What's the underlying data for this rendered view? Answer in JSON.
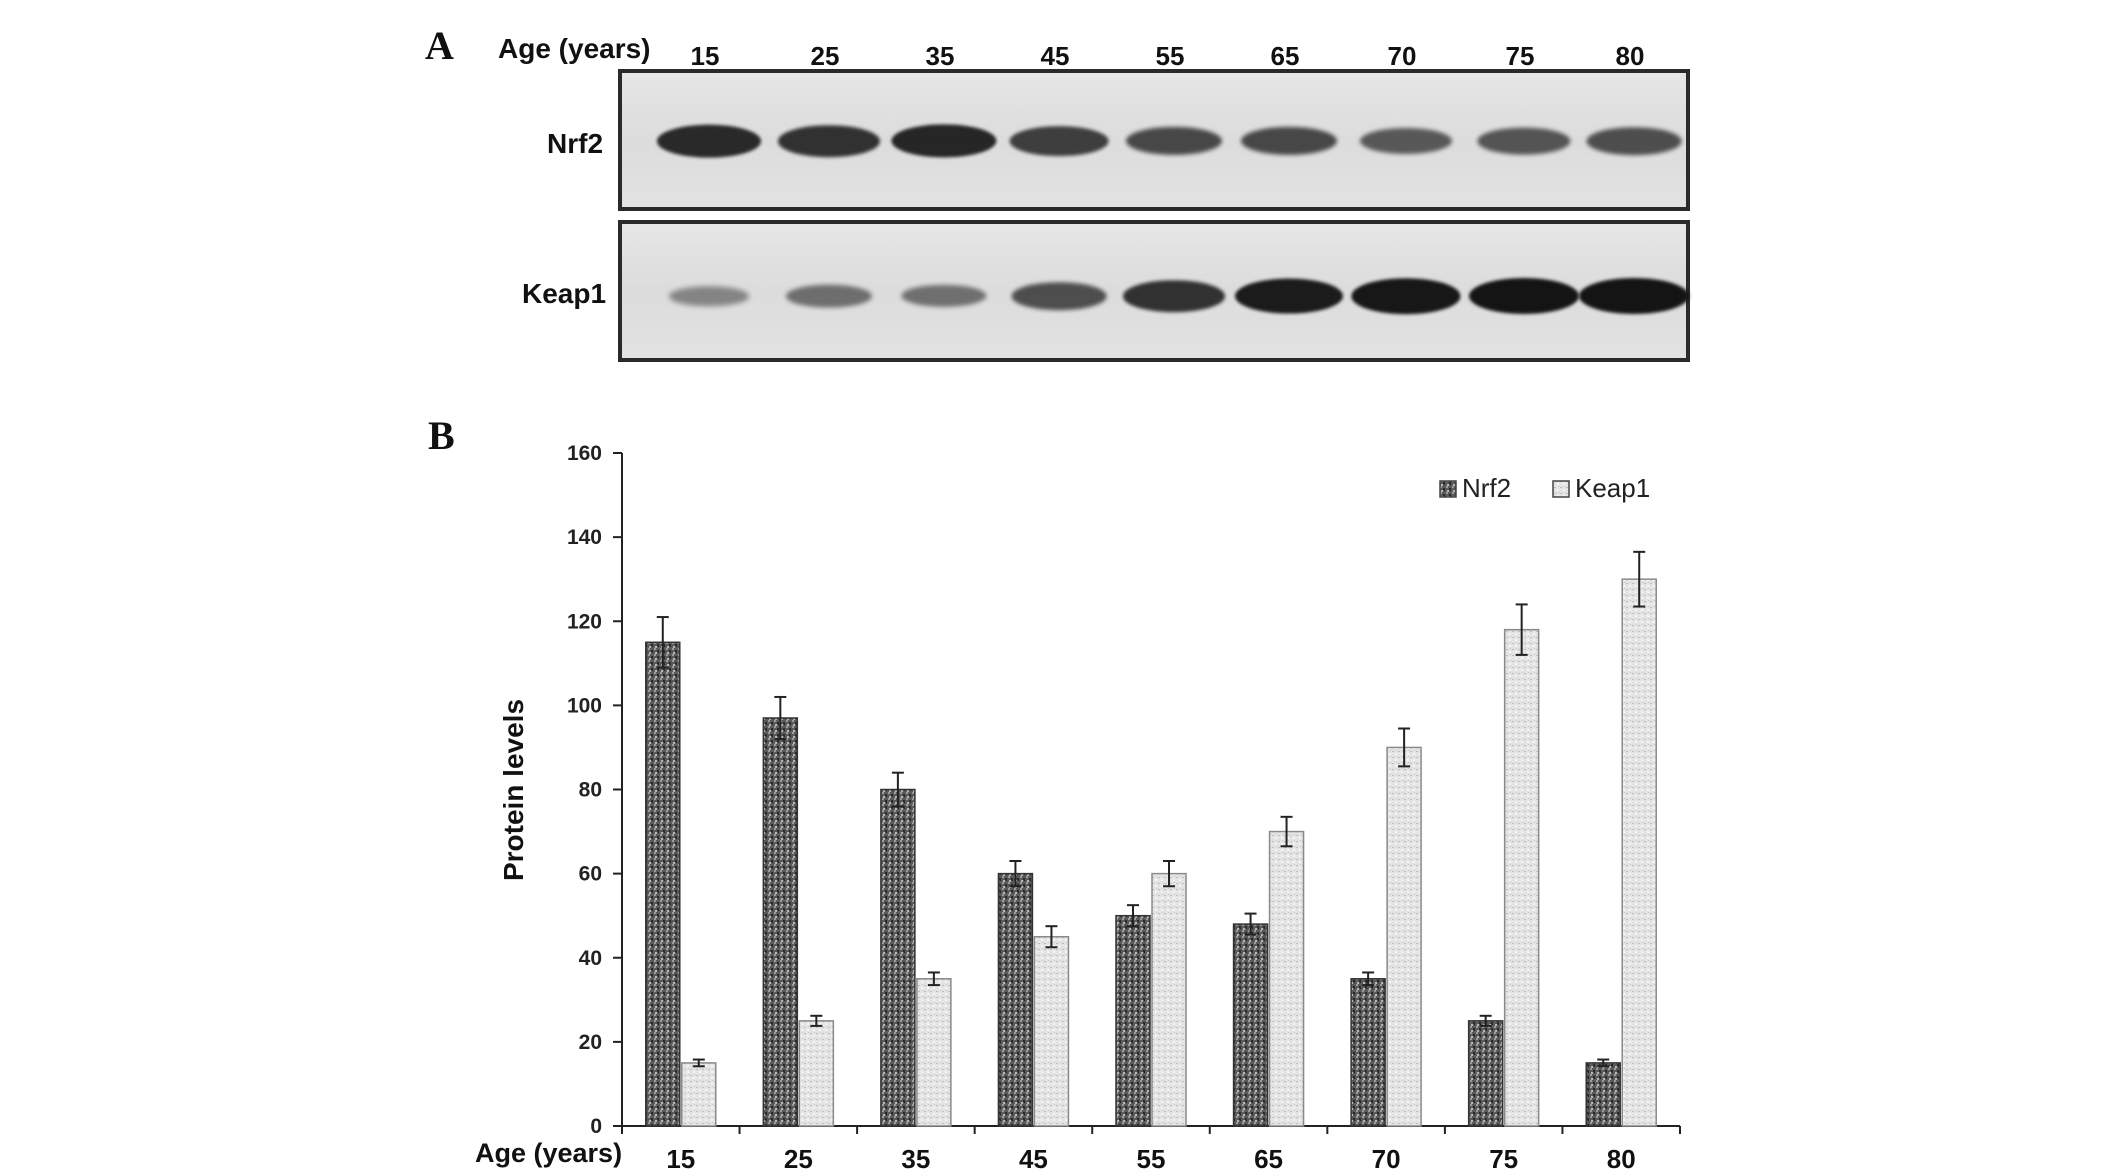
{
  "panel_a": {
    "letter": "A",
    "age_label": "Age (years)",
    "lanes": [
      "15",
      "25",
      "35",
      "45",
      "55",
      "65",
      "70",
      "75",
      "80"
    ],
    "rows": [
      {
        "label": "Nrf2",
        "relative_intensity": [
          0.85,
          0.8,
          0.88,
          0.72,
          0.65,
          0.65,
          0.55,
          0.58,
          0.62
        ]
      },
      {
        "label": "Keap1",
        "relative_intensity": [
          0.25,
          0.4,
          0.38,
          0.62,
          0.8,
          0.95,
          0.98,
          1.0,
          1.0
        ]
      }
    ],
    "band_color": "#141414"
  },
  "panel_b": {
    "letter": "B"
  },
  "chart_data": {
    "type": "bar",
    "xlabel": "Age (years)",
    "ylabel": "Protein levels",
    "categories": [
      "15",
      "25",
      "35",
      "45",
      "55",
      "65",
      "70",
      "75",
      "80"
    ],
    "ylim": [
      0,
      160
    ],
    "yticks": [
      "0",
      "20",
      "40",
      "60",
      "80",
      "100",
      "120",
      "140",
      "160"
    ],
    "series": [
      {
        "name": "Nrf2",
        "values": [
          115,
          97,
          80,
          60,
          50,
          48,
          35,
          25,
          15
        ],
        "errors": [
          6,
          5,
          4,
          3,
          2.5,
          2.5,
          1.5,
          1.2,
          0.8
        ],
        "color": "#6a6a6a"
      },
      {
        "name": "Keap1",
        "values": [
          15,
          25,
          35,
          45,
          60,
          70,
          90,
          118,
          130
        ],
        "errors": [
          0.8,
          1.2,
          1.5,
          2.5,
          3,
          3.5,
          4.5,
          6,
          6.5
        ],
        "color": "#d6d6d6"
      }
    ],
    "legend_position": "top-right",
    "grid": false
  }
}
